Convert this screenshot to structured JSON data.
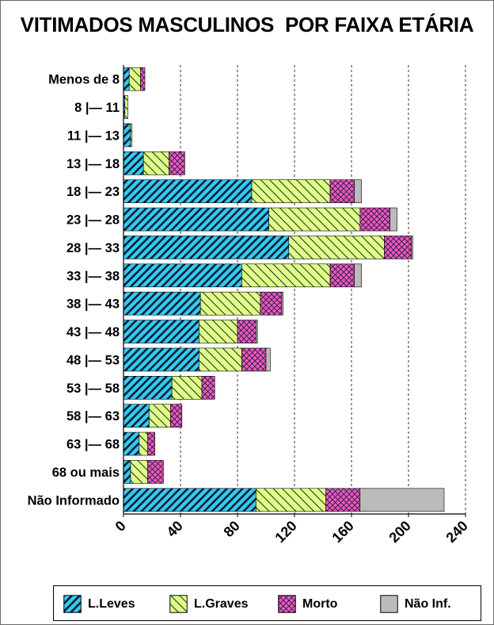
{
  "chart_data": {
    "type": "bar",
    "orientation": "horizontal",
    "stacked": true,
    "title": "VITIMADOS MASCULINOS  POR FAIXA ETÁRIA",
    "categories": [
      "Menos de 8",
      "8 |— 11",
      "11 |— 13",
      "13 |— 18",
      "18 |— 23",
      "23 |— 28",
      "28 |— 33",
      "33 |— 38",
      "38 |— 43",
      "43 |— 48",
      "48 |— 53",
      "53 |— 58",
      "58 |— 63",
      "63 |— 68",
      "68 ou mais",
      "Não Informado"
    ],
    "series": [
      {
        "name": "L.Leves",
        "color": "#33ccee",
        "pattern": "diagonal-stripes",
        "values": [
          4,
          1,
          5,
          14,
          90,
          102,
          116,
          83,
          54,
          53,
          53,
          34,
          18,
          11,
          5,
          93
        ]
      },
      {
        "name": "L.Graves",
        "color": "#ddff88",
        "pattern": "diagonal-lines",
        "values": [
          8,
          2,
          1,
          18,
          55,
          64,
          67,
          62,
          42,
          27,
          30,
          21,
          15,
          6,
          12,
          49
        ]
      },
      {
        "name": "Morto",
        "color": "#ee55cc",
        "pattern": "crosshatch",
        "values": [
          3,
          0,
          0,
          11,
          17,
          21,
          19,
          17,
          15,
          13,
          17,
          9,
          8,
          5,
          11,
          24
        ]
      },
      {
        "name": "Não Inf.",
        "color": "#bbbbbb",
        "pattern": "solid",
        "values": [
          0,
          0,
          0,
          0,
          5,
          5,
          1,
          5,
          1,
          1,
          3,
          0,
          0,
          0,
          0,
          59
        ]
      }
    ],
    "x_ticks": [
      0,
      40,
      80,
      120,
      160,
      200,
      240
    ],
    "xlim": [
      0,
      240
    ],
    "grid": "vertical dashed",
    "legend_position": "bottom"
  }
}
